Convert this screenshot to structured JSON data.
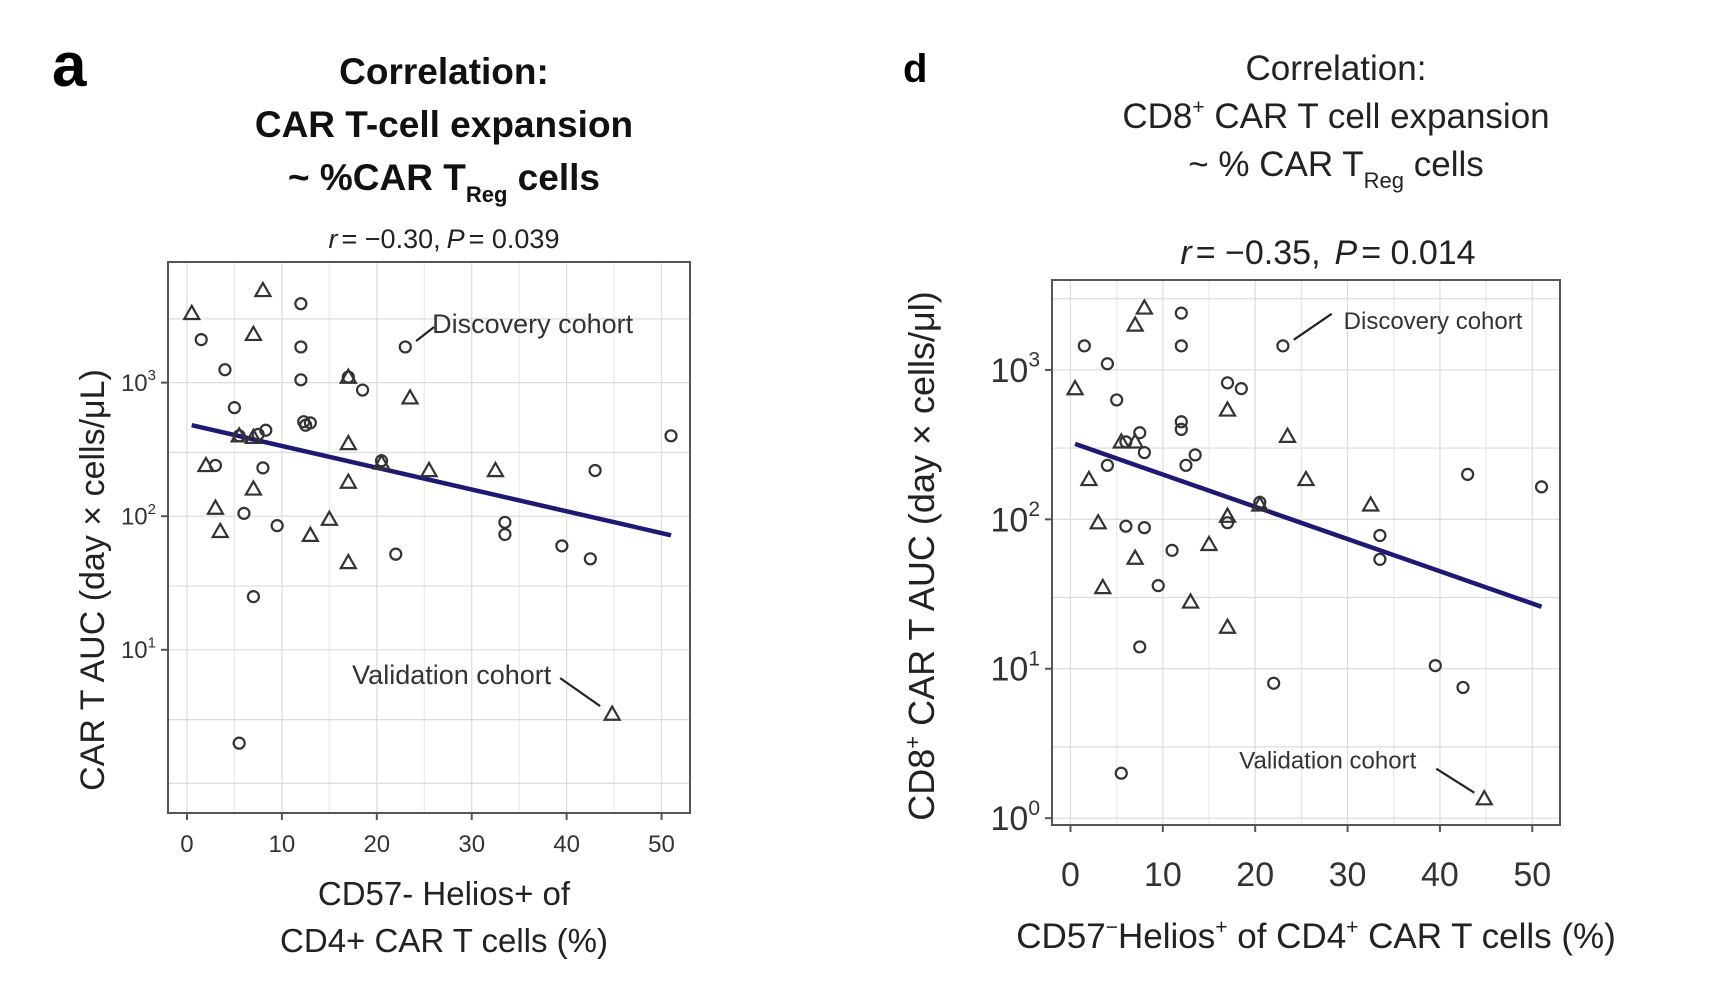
{
  "chart_data": [
    {
      "panel": "a",
      "type": "scatter",
      "title": [
        "Correlation:",
        "CAR T-cell expansion",
        "~ %CAR T"
      ],
      "title_subscript": "Reg",
      "title_suffix": " cells",
      "stat": {
        "r_label": "r",
        "r_value": "= −0.30,",
        "p_label": "P",
        "p_value": "= 0.039"
      },
      "xlabel": [
        "CD57- Helios+ of",
        "CD4+ CAR T cells (%)"
      ],
      "ylabel": "CAR T AUC (day × cells/μL)",
      "xlim": [
        -2,
        53
      ],
      "ylim": [
        0.6,
        8000
      ],
      "yscale": "log",
      "xticks": [
        0,
        10,
        20,
        30,
        40,
        50
      ],
      "yticks": [
        {
          "value": 10,
          "base": "10",
          "exp": "1"
        },
        {
          "value": 100,
          "base": "10",
          "exp": "2"
        },
        {
          "value": 1000,
          "base": "10",
          "exp": "3"
        }
      ],
      "fit_line": {
        "x": [
          0.5,
          51
        ],
        "y": [
          480,
          72
        ]
      },
      "annotations": {
        "discovery": {
          "text": "Discovery cohort",
          "x": 23.3,
          "y": 1850
        },
        "validation": {
          "text": "Validation cohort",
          "x": 44.8,
          "y": 3.3
        }
      },
      "series": [
        {
          "name": "Discovery cohort",
          "marker": "circle",
          "points": [
            [
              1.5,
              2100
            ],
            [
              4,
              1250
            ],
            [
              5,
              650
            ],
            [
              12,
              3900
            ],
            [
              12,
              1850
            ],
            [
              12,
              1050
            ],
            [
              12.5,
              480
            ],
            [
              13,
              500
            ],
            [
              17,
              1100
            ],
            [
              18.5,
              880
            ],
            [
              23,
              1850
            ],
            [
              3,
              240
            ],
            [
              5.5,
              400
            ],
            [
              7.5,
              410
            ],
            [
              8,
              230
            ],
            [
              8.3,
              440
            ],
            [
              9.5,
              85
            ],
            [
              6,
              105
            ],
            [
              7,
              25
            ],
            [
              5.5,
              2
            ],
            [
              12.3,
              510
            ],
            [
              20.5,
              260
            ],
            [
              22,
              52
            ],
            [
              33.5,
              90
            ],
            [
              33.5,
              73
            ],
            [
              39.5,
              60
            ],
            [
              42.5,
              48
            ],
            [
              43,
              220
            ],
            [
              51,
              400
            ]
          ]
        },
        {
          "name": "Validation cohort",
          "marker": "triangle",
          "points": [
            [
              0.5,
              3300
            ],
            [
              8,
              4900
            ],
            [
              7,
              2300
            ],
            [
              17,
              1100
            ],
            [
              23.5,
              770
            ],
            [
              2,
              240
            ],
            [
              3,
              115
            ],
            [
              3.5,
              77
            ],
            [
              5.5,
              400
            ],
            [
              7,
              390
            ],
            [
              7,
              160
            ],
            [
              17,
              350
            ],
            [
              17,
              180
            ],
            [
              17,
              45
            ],
            [
              13,
              72
            ],
            [
              15,
              95
            ],
            [
              20.5,
              250
            ],
            [
              25.5,
              220
            ],
            [
              32.5,
              220
            ],
            [
              44.8,
              3.3
            ]
          ]
        }
      ]
    },
    {
      "panel": "d",
      "type": "scatter",
      "title": [
        "Correlation:",
        "CD8",
        " CAR T cell expansion",
        "~ % CAR T"
      ],
      "title_superscript": "+",
      "title_subscript": "Reg",
      "title_suffix": " cells",
      "stat": {
        "r_label": "r",
        "r_value": "= −0.35,",
        "p_label": "P",
        "p_value": "= 0.014"
      },
      "xlabel": {
        "a": "CD57",
        "a_sup": "−",
        "b": "Helios",
        "b_sup": "+",
        "c": " of CD4",
        "c_sup": "+",
        "d": " CAR T cells (%)"
      },
      "ylabel": {
        "a": "CD8",
        "a_sup": "+",
        "b": " CAR T AUC (day × cells/μl)"
      },
      "xlim": [
        -2,
        53
      ],
      "ylim": [
        0.9,
        4000
      ],
      "yscale": "log",
      "xticks": [
        0,
        10,
        20,
        30,
        40,
        50
      ],
      "yticks": [
        {
          "value": 1,
          "base": "10",
          "exp": "0"
        },
        {
          "value": 10,
          "base": "10",
          "exp": "1"
        },
        {
          "value": 100,
          "base": "10",
          "exp": "2"
        },
        {
          "value": 1000,
          "base": "10",
          "exp": "3"
        }
      ],
      "fit_line": {
        "x": [
          0.5,
          51
        ],
        "y": [
          320,
          26
        ]
      },
      "annotations": {
        "discovery": {
          "text": "Discovery cohort",
          "x": 23.3,
          "y": 1450
        },
        "validation": {
          "text": "Validation cohort",
          "x": 44.8,
          "y": 1.35
        }
      },
      "series": [
        {
          "name": "Discovery cohort",
          "marker": "circle",
          "points": [
            [
              1.5,
              1450
            ],
            [
              4,
              1100
            ],
            [
              5,
              630
            ],
            [
              12,
              2400
            ],
            [
              12,
              1450
            ],
            [
              12,
              450
            ],
            [
              12,
              400
            ],
            [
              12.5,
              230
            ],
            [
              13.5,
              270
            ],
            [
              17,
              820
            ],
            [
              18.5,
              750
            ],
            [
              23,
              1450
            ],
            [
              4,
              230
            ],
            [
              6,
              330
            ],
            [
              7.5,
              380
            ],
            [
              8,
              280
            ],
            [
              6,
              90
            ],
            [
              8,
              88
            ],
            [
              11,
              62
            ],
            [
              9.5,
              36
            ],
            [
              7.5,
              14
            ],
            [
              5.5,
              2
            ],
            [
              17,
              95
            ],
            [
              20.5,
              130
            ],
            [
              22,
              8
            ],
            [
              33.5,
              78
            ],
            [
              33.5,
              54
            ],
            [
              39.5,
              10.5
            ],
            [
              42.5,
              7.5
            ],
            [
              43,
              200
            ],
            [
              51,
              165
            ]
          ]
        },
        {
          "name": "Validation cohort",
          "marker": "triangle",
          "points": [
            [
              0.5,
              750
            ],
            [
              8,
              2600
            ],
            [
              7,
              2000
            ],
            [
              17,
              540
            ],
            [
              23.5,
              360
            ],
            [
              2,
              185
            ],
            [
              3,
              95
            ],
            [
              3.5,
              35
            ],
            [
              5.5,
              330
            ],
            [
              7,
              330
            ],
            [
              7,
              55
            ],
            [
              13,
              28
            ],
            [
              15,
              68
            ],
            [
              17,
              105
            ],
            [
              17,
              19
            ],
            [
              20.5,
              125
            ],
            [
              25.5,
              185
            ],
            [
              32.5,
              125
            ],
            [
              44.8,
              1.35
            ]
          ]
        }
      ]
    }
  ]
}
